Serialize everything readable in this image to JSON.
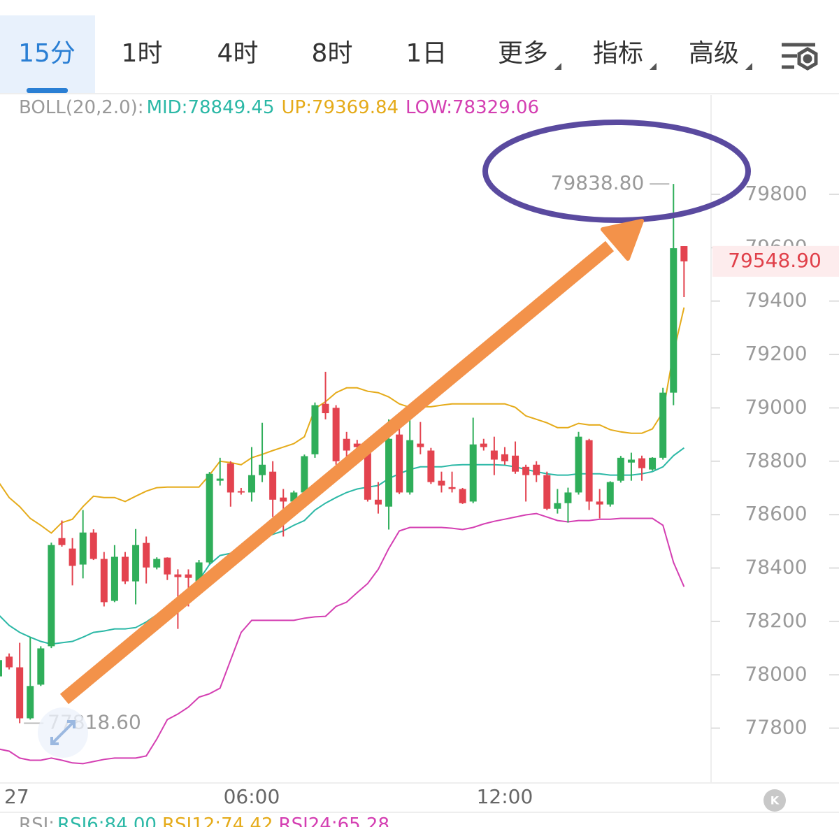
{
  "toolbar": {
    "tabs": [
      "15分",
      "1时",
      "4时",
      "8时",
      "1日",
      "更多",
      "指标",
      "高级"
    ]
  },
  "chart_data": {
    "type": "candlestick",
    "indicator_label": "BOLL(20,2.0):",
    "x": [
      0,
      0.25,
      0.5,
      0.75,
      1,
      1.25,
      1.5,
      1.75,
      2,
      2.25,
      2.5,
      2.75,
      3,
      3.25,
      3.5,
      3.75,
      4,
      4.25,
      4.5,
      4.75,
      5,
      5.25,
      5.5,
      5.75,
      6,
      6.25,
      6.5,
      6.75,
      7,
      7.25,
      7.5,
      7.75,
      8,
      8.25,
      8.5,
      8.75,
      9,
      9.25,
      9.5,
      9.75,
      10,
      10.25,
      10.5,
      10.75,
      11,
      11.25,
      11.5,
      11.75,
      12,
      12.25,
      12.5,
      12.75,
      13,
      13.25,
      13.5,
      13.75,
      14,
      14.25,
      14.5,
      14.75,
      15,
      15.25,
      15.5,
      15.75,
      16,
      16.25
    ],
    "open": [
      77994,
      78068,
      78028,
      77837,
      77963,
      78107,
      78512,
      78473,
      78413,
      78533,
      78434,
      78277,
      78442,
      78350,
      78494,
      78402,
      78439,
      78376,
      78376,
      78350,
      78421,
      78727,
      78792,
      78688,
      78683,
      78748,
      78761,
      78664,
      78649,
      78683,
      78826,
      79015,
      79000,
      78884,
      78866,
      78858,
      78656,
      78630,
      78900,
      78683,
      78866,
      78840,
      78727,
      78703,
      78696,
      78649,
      78866,
      78840,
      78826,
      78821,
      78779,
      78787,
      78748,
      78622,
      78643,
      78683,
      78879,
      78649,
      78638,
      78727,
      78795,
      78811,
      78769,
      78813,
      79057,
      79606
    ],
    "high": [
      78068,
      78080,
      78120,
      78141,
      78107,
      78495,
      78578,
      78512,
      78617,
      78545,
      78460,
      78486,
      78460,
      78546,
      78518,
      78440,
      78440,
      78395,
      78395,
      78430,
      78760,
      78813,
      78800,
      78700,
      78853,
      78944,
      78800,
      78696,
      78690,
      78825,
      79020,
      79135,
      79010,
      78910,
      78880,
      78879,
      78722,
      78957,
      78926,
      78957,
      78947,
      78850,
      78761,
      78761,
      78700,
      78963,
      78884,
      78892,
      78853,
      78874,
      78787,
      78800,
      78761,
      78696,
      78701,
      78910,
      78884,
      78696,
      78725,
      78820,
      78832,
      78821,
      78815,
      79075,
      79838.8,
      79606
    ],
    "low": [
      77989,
      78020,
      77818.6,
      77832,
      77958,
      78100,
      78480,
      78335,
      78361,
      78430,
      78256,
      78272,
      78340,
      78264,
      78342,
      78395,
      78355,
      78172,
      78256,
      78340,
      78415,
      78709,
      78630,
      78675,
      78649,
      78722,
      78591,
      78518,
      78640,
      78680,
      78813,
      78957,
      78787,
      78813,
      78845,
      78649,
      78604,
      78544,
      78677,
      78675,
      78826,
      78715,
      78683,
      78683,
      78640,
      78643,
      78840,
      78748,
      78787,
      78753,
      78649,
      78722,
      78617,
      78604,
      78570,
      78675,
      78617,
      78586,
      78630,
      78720,
      78727,
      78727,
      78765,
      78806,
      79010,
      79415
    ],
    "close": [
      78055,
      78028,
      77837,
      77958,
      78099,
      78486,
      78486,
      78408,
      78533,
      78434,
      78272,
      78442,
      78350,
      78486,
      78402,
      78434,
      78376,
      78366,
      78363,
      78421,
      78753,
      78735,
      78683,
      78683,
      78748,
      78787,
      78656,
      78649,
      78683,
      78819,
      79010,
      78980,
      78800,
      78840,
      78853,
      78656,
      78638,
      78884,
      78683,
      78879,
      78853,
      78722,
      78709,
      78696,
      78643,
      78863,
      78853,
      78806,
      78800,
      78761,
      78748,
      78748,
      78622,
      78643,
      78683,
      78892,
      78649,
      78638,
      78722,
      78813,
      78806,
      78774,
      78813,
      79057,
      79598,
      79548.9
    ],
    "up_color": "#2fae5a",
    "down_color": "#e3434f",
    "bands": [
      {
        "name": "MID:78849.45",
        "color": "#2bb8a6",
        "values": [
          78225,
          78185,
          78159,
          78141,
          78125,
          78115,
          78120,
          78125,
          78141,
          78159,
          78164,
          78172,
          78172,
          78177,
          78198,
          78225,
          78251,
          78282,
          78316,
          78355,
          78413,
          78447,
          78455,
          78481,
          78499,
          78512,
          78526,
          78539,
          78560,
          78578,
          78617,
          78643,
          78664,
          78683,
          78696,
          78703,
          78709,
          78735,
          78753,
          78769,
          78779,
          78779,
          78779,
          78785,
          78787,
          78787,
          78787,
          78787,
          78785,
          78779,
          78769,
          78761,
          78753,
          78748,
          78748,
          78753,
          78753,
          78753,
          78748,
          78748,
          78748,
          78753,
          78761,
          78779,
          78821,
          78850
        ]
      },
      {
        "name": "UP:79369.84",
        "color": "#e5ab1a",
        "values": [
          78722,
          78664,
          78630,
          78586,
          78560,
          78531,
          78570,
          78583,
          78630,
          78669,
          78664,
          78664,
          78649,
          78669,
          78688,
          78701,
          78703,
          78703,
          78703,
          78703,
          78748,
          78800,
          78795,
          78787,
          78813,
          78826,
          78840,
          78853,
          78866,
          78892,
          78997,
          79023,
          79057,
          79075,
          79075,
          79062,
          79057,
          79041,
          79015,
          79002,
          79004,
          79004,
          79010,
          79015,
          79015,
          79015,
          79015,
          79015,
          79015,
          79002,
          78970,
          78957,
          78944,
          78926,
          78926,
          78942,
          78936,
          78936,
          78918,
          78910,
          78905,
          78905,
          78921,
          78984,
          79206,
          79376
        ]
      },
      {
        "name": "LOW:78329.06",
        "color": "#d43fb2",
        "values": [
          77722,
          77714,
          77688,
          77680,
          77680,
          77688,
          77680,
          77670,
          77667,
          77675,
          77683,
          77688,
          77688,
          77688,
          77696,
          77759,
          77832,
          77853,
          77879,
          77916,
          77929,
          77950,
          78055,
          78159,
          78204,
          78204,
          78204,
          78204,
          78204,
          78212,
          78217,
          78219,
          78256,
          78272,
          78308,
          78342,
          78395,
          78473,
          78539,
          78552,
          78552,
          78552,
          78552,
          78549,
          78544,
          78552,
          78565,
          78575,
          78583,
          78591,
          78599,
          78604,
          78591,
          78578,
          78573,
          78578,
          78578,
          78583,
          78583,
          78586,
          78586,
          78586,
          78586,
          78560,
          78421,
          78330
        ]
      }
    ],
    "xlim": [
      0,
      17
    ],
    "xticks": [
      {
        "value": 0,
        "label": "27"
      },
      {
        "value": 6,
        "label": "06:00"
      },
      {
        "value": 12,
        "label": "12:00"
      }
    ],
    "ylim": [
      77600,
      80100
    ],
    "yticks": [
      77800,
      78000,
      78200,
      78400,
      78600,
      78800,
      79000,
      79200,
      79400,
      79600,
      79800
    ],
    "high_label": "79838.80",
    "low_label": "77818.60",
    "last_price_label": "79548.90"
  },
  "rsi_bar": {
    "label": "RSI:",
    "items": [
      {
        "text": "RSI6:84.00",
        "color": "#2bb8a6"
      },
      {
        "text": "RSI12:74.42",
        "color": "#e5ab1a"
      },
      {
        "text": "RSI24:65.28",
        "color": "#d43fb2"
      }
    ]
  }
}
